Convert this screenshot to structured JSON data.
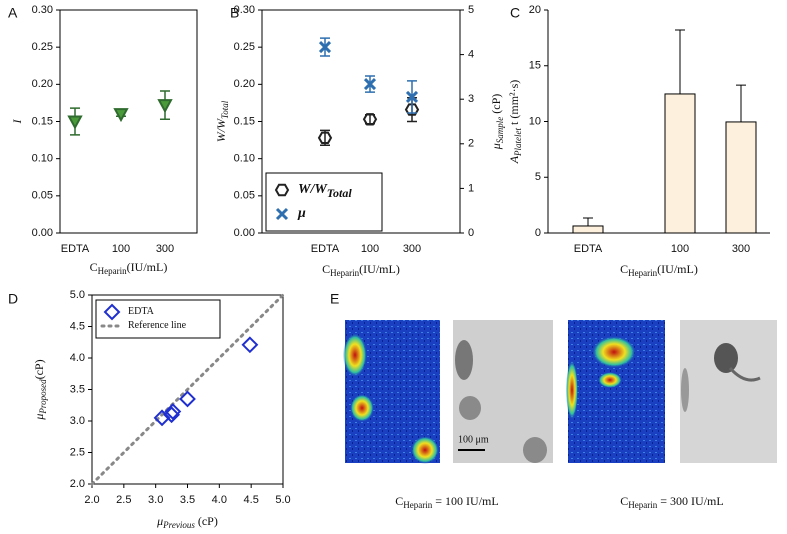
{
  "chart_data": [
    {
      "panel": "A",
      "type": "errorbar",
      "categories": [
        "EDTA",
        "100",
        "300"
      ],
      "series": [
        {
          "color": "#2f6b2f",
          "marker": "triangle-down",
          "values": [
            0.15,
            0.16,
            0.172
          ],
          "errors": [
            0.018,
            0.003,
            0.019
          ]
        }
      ],
      "ylim": [
        0,
        0.3
      ],
      "yticks": [
        {
          "value": 0,
          "label": "0.00"
        },
        {
          "value": 0.05,
          "label": "0.05"
        },
        {
          "value": 0.1,
          "label": "0.10"
        },
        {
          "value": 0.15,
          "label": "0.15"
        },
        {
          "value": 0.2,
          "label": "0.20"
        },
        {
          "value": 0.25,
          "label": "0.25"
        },
        {
          "value": 0.3,
          "label": "0.30"
        }
      ],
      "ylabel": {
        "main": "I"
      },
      "xlabel": {
        "main": "C",
        "sub": "Heparin",
        "rest": "(IU/mL)"
      },
      "frame": true
    },
    {
      "panel": "B",
      "type": "errorbar",
      "categories": [
        "EDTA",
        "100",
        "300"
      ],
      "series": [
        {
          "name": "W/W",
          "name_sub": "Total",
          "color": "#222222",
          "marker": "hexagon",
          "values": [
            0.128,
            0.153,
            0.166
          ],
          "errors": [
            0.01,
            0.006,
            0.016
          ]
        },
        {
          "name": "μ",
          "color": "#2e6fb0",
          "marker": "x",
          "axis": "y2",
          "values": [
            4.17,
            3.34,
            3.05
          ],
          "errors": [
            0.2,
            0.18,
            0.36
          ]
        }
      ],
      "ylim": [
        0,
        0.3
      ],
      "yticks": [
        {
          "value": 0,
          "label": "0.00"
        },
        {
          "value": 0.05,
          "label": "0.05"
        },
        {
          "value": 0.1,
          "label": "0.10"
        },
        {
          "value": 0.15,
          "label": "0.15"
        },
        {
          "value": 0.2,
          "label": "0.20"
        },
        {
          "value": 0.25,
          "label": "0.25"
        },
        {
          "value": 0.3,
          "label": "0.30"
        }
      ],
      "y2lim": [
        0,
        5
      ],
      "y2ticks": [
        0,
        1,
        2,
        3,
        4,
        5
      ],
      "ylabel": {
        "main": "W/W",
        "sub": "Total"
      },
      "y2label": {
        "main": "μ",
        "sub": "Sample",
        "rest": " (cP)"
      },
      "xlabel": {
        "main": "C",
        "sub": "Heparin",
        "rest": "(IU/mL)"
      },
      "legend": "lower left",
      "frame": true
    },
    {
      "panel": "C",
      "type": "bar",
      "categories": [
        "EDTA",
        "100",
        "300"
      ],
      "series": [
        {
          "color": "#fdf0dc",
          "values": [
            0.63,
            12.47,
            9.96
          ],
          "errors": [
            0.72,
            5.74,
            3.3
          ]
        }
      ],
      "ylim": [
        0,
        20
      ],
      "yticks": [
        0,
        5,
        10,
        15,
        20
      ],
      "ylabel": {
        "main": "A",
        "sub": "Platelet",
        "rest": " t (mm²·s)"
      },
      "xlabel": {
        "main": "C",
        "sub": "Heparin",
        "rest": "(IU/mL)"
      },
      "frame": false
    },
    {
      "panel": "D",
      "type": "scatter",
      "series": [
        {
          "name": "EDTA",
          "color": "#1f2fd0",
          "marker": "diamond",
          "x": [
            3.1,
            3.25,
            3.27,
            3.5,
            4.48
          ],
          "values": [
            3.05,
            3.1,
            3.15,
            3.35,
            4.21
          ]
        }
      ],
      "reference": {
        "name": "Reference line",
        "color": "#888888",
        "x": [
          2,
          5
        ],
        "values": [
          2,
          5
        ]
      },
      "xlim": [
        2,
        5
      ],
      "ylim": [
        2,
        5
      ],
      "xticks": [
        {
          "value": 2,
          "label": "2.0"
        },
        {
          "value": 2.5,
          "label": "2.5"
        },
        {
          "value": 3,
          "label": "3.0"
        },
        {
          "value": 3.5,
          "label": "3.5"
        },
        {
          "value": 4,
          "label": "4.0"
        },
        {
          "value": 4.5,
          "label": "4.5"
        },
        {
          "value": 5,
          "label": "5.0"
        }
      ],
      "yticks": [
        {
          "value": 2,
          "label": "2.0"
        },
        {
          "value": 2.5,
          "label": "2.5"
        },
        {
          "value": 3,
          "label": "3.0"
        },
        {
          "value": 3.5,
          "label": "3.5"
        },
        {
          "value": 4,
          "label": "4.0"
        },
        {
          "value": 4.5,
          "label": "4.5"
        },
        {
          "value": 5,
          "label": "5.0"
        }
      ],
      "ylabel": {
        "main": "μ",
        "sub": "Proposed",
        "rest": "(cP)"
      },
      "xlabel": {
        "main": "μ",
        "sub": "Previous",
        "rest": " (cP)"
      },
      "legend": "upper left",
      "frame": true
    }
  ],
  "panel_e": {
    "panel": "E",
    "scale_bar": "100 μm",
    "captions": [
      {
        "main": "C",
        "sub": "Heparin",
        "rest": " = 100 IU/mL"
      },
      {
        "main": "C",
        "sub": "Heparin",
        "rest": " = 300 IU/mL"
      }
    ]
  }
}
